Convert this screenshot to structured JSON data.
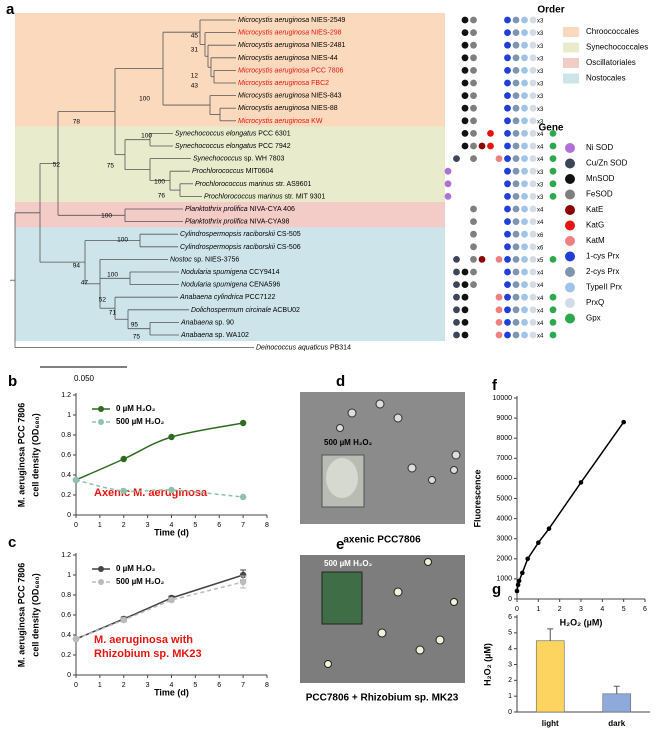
{
  "panel_a": {
    "label": "a",
    "taxa": [
      {
        "species": "Microcystis aeruginosa",
        "strain": "NIES-2549",
        "color": "#000000",
        "genes": [
          2,
          3,
          7,
          8,
          9,
          10
        ],
        "copies": "x3"
      },
      {
        "species": "Microcystis aeruginosa",
        "strain": "NIES-298",
        "color": "#e8140f",
        "genes": [
          2,
          3,
          7,
          8,
          9,
          10
        ],
        "copies": "x3"
      },
      {
        "species": "Microcystis aeruginosa",
        "strain": "NIES-2481",
        "color": "#000000",
        "genes": [
          2,
          3,
          7,
          8,
          9,
          10
        ],
        "copies": "x3"
      },
      {
        "species": "Microcystis aeruginosa",
        "strain": "NIES-44",
        "color": "#000000",
        "genes": [
          2,
          3,
          7,
          8,
          9,
          10
        ],
        "copies": "x3"
      },
      {
        "species": "Microcystis aeruginosa",
        "strain": "PCC 7806",
        "color": "#e8140f",
        "genes": [
          2,
          3,
          7,
          8,
          9,
          10
        ],
        "copies": "x3"
      },
      {
        "species": "Microcystis aeruginosa",
        "strain": "FBC2",
        "color": "#e8140f",
        "genes": [
          2,
          3,
          7,
          8,
          9,
          10
        ],
        "copies": "x3"
      },
      {
        "species": "Microcystis aeruginosa",
        "strain": "NIES-843",
        "color": "#000000",
        "genes": [
          2,
          3,
          7,
          8,
          9,
          10
        ],
        "copies": "x3"
      },
      {
        "species": "Microcystis aeruginosa",
        "strain": "NIES-88",
        "color": "#000000",
        "genes": [
          2,
          3,
          7,
          8,
          9,
          10
        ],
        "copies": "x3"
      },
      {
        "species": "Microcystis aeruginosa",
        "strain": "KW",
        "color": "#e8140f",
        "genes": [
          2,
          3,
          7,
          8,
          9,
          10
        ],
        "copies": "x3"
      },
      {
        "species": "Synechococcus elongatus",
        "strain": "PCC 6301",
        "color": "#000000",
        "genes": [
          2,
          3,
          5,
          7,
          8,
          9,
          10,
          11
        ],
        "copies": "x4"
      },
      {
        "species": "Synechococcus elongatus",
        "strain": "PCC 7942",
        "color": "#000000",
        "genes": [
          2,
          3,
          4,
          5,
          7,
          8,
          9,
          10,
          11
        ],
        "copies": "x4"
      },
      {
        "species": "Synechococcus",
        "strain": "sp. WH 7803",
        "color": "#000000",
        "genes": [
          1,
          3,
          6,
          7,
          8,
          9,
          10,
          11
        ],
        "copies": "x4"
      },
      {
        "species": "Prochlorococcus",
        "strain": "MIT0604",
        "color": "#000000",
        "genes": [
          0,
          7,
          8,
          9,
          10,
          11
        ],
        "copies": "x3"
      },
      {
        "species": "Prochlorococcus marinus",
        "strain": "str. AS9601",
        "color": "#000000",
        "genes": [
          0,
          7,
          8,
          9,
          10,
          11
        ],
        "copies": "x3"
      },
      {
        "species": "Prochlorococcus marinus",
        "strain": "str. MIT 9301",
        "color": "#000000",
        "genes": [
          0,
          7,
          8,
          9,
          10,
          11
        ],
        "copies": "x3"
      },
      {
        "species": "Planktothrix prolifica",
        "strain": "NIVA-CYA 406",
        "color": "#000000",
        "genes": [
          3,
          7,
          8,
          9,
          10
        ],
        "copies": "x4"
      },
      {
        "species": "Planktothrix prolifica",
        "strain": "NIVA-CYA98",
        "color": "#000000",
        "genes": [
          3,
          7,
          8,
          9,
          10
        ],
        "copies": "x4"
      },
      {
        "species": "Cylindrospermopsis raciborskii",
        "strain": "CS-505",
        "color": "#000000",
        "genes": [
          3,
          7,
          8,
          9,
          10
        ],
        "copies": "x6"
      },
      {
        "species": "Cylindrospermopsis raciborskii",
        "strain": "CS-506",
        "color": "#000000",
        "genes": [
          3,
          7,
          8,
          9,
          10
        ],
        "copies": "x6"
      },
      {
        "species": "Nostoc",
        "strain": "sp. NIES-3756",
        "color": "#000000",
        "genes": [
          1,
          3,
          4,
          6,
          7,
          8,
          9,
          10,
          11
        ],
        "copies": "x5"
      },
      {
        "species": "Nodularia spumigena",
        "strain": "CCY9414",
        "color": "#000000",
        "genes": [
          1,
          2,
          3,
          7,
          8,
          9,
          10
        ],
        "copies": "x4"
      },
      {
        "species": "Nodularia spumigena",
        "strain": "CENA596",
        "color": "#000000",
        "genes": [
          1,
          2,
          3,
          7,
          8,
          9,
          10
        ],
        "copies": "x4"
      },
      {
        "species": "Anabaena cylindrica",
        "strain": "PCC7122",
        "color": "#000000",
        "genes": [
          1,
          2,
          6,
          7,
          8,
          9,
          10,
          11
        ],
        "copies": "x4"
      },
      {
        "species": "Dolichospermum circinale",
        "strain": "ACBU02",
        "color": "#000000",
        "genes": [
          1,
          2,
          6,
          7,
          8,
          9,
          10,
          11
        ],
        "copies": "x4"
      },
      {
        "species": "Anabaena",
        "strain": "sp. 90",
        "color": "#000000",
        "genes": [
          1,
          2,
          6,
          7,
          8,
          9,
          10,
          11
        ],
        "copies": "x4"
      },
      {
        "species": "Anabaena",
        "strain": "sp. WA102",
        "color": "#000000",
        "genes": [
          1,
          2,
          6,
          7,
          8,
          9,
          10,
          11
        ],
        "copies": "x4"
      },
      {
        "species": "Deinococcus aquaticus",
        "strain": "PB314",
        "color": "#000000",
        "genes": []
      }
    ],
    "bootstrap": [
      45,
      31,
      12,
      43,
      100,
      78,
      100,
      75,
      100,
      76,
      52,
      100,
      100,
      94,
      100,
      47,
      52,
      71,
      95,
      75
    ],
    "scale_label": "0.050",
    "order_legend": {
      "title": "Order",
      "items": [
        {
          "name": "Chroococcales",
          "color": "#fbd9bd"
        },
        {
          "name": "Synechococcales",
          "color": "#e8eccd"
        },
        {
          "name": "Oscillatoriales",
          "color": "#f3cbc7"
        },
        {
          "name": "Nostocales",
          "color": "#cde4ea"
        }
      ]
    },
    "gene_legend": {
      "title": "Gene",
      "items": [
        {
          "name": "Ni SOD",
          "color": "#b070d8"
        },
        {
          "name": "Cu/Zn SOD",
          "color": "#3c4558"
        },
        {
          "name": "MnSOD",
          "color": "#111111"
        },
        {
          "name": "FeSOD",
          "color": "#7f7f7f"
        },
        {
          "name": "KatE",
          "color": "#8b0000"
        },
        {
          "name": "KatG",
          "color": "#e8140f"
        },
        {
          "name": "KatM",
          "color": "#f08080"
        },
        {
          "name": "1-cys Prx",
          "color": "#1f3fd6"
        },
        {
          "name": "2-cys Prx",
          "color": "#7f94ae"
        },
        {
          "name": "TypeII Prx",
          "color": "#9fc4e8"
        },
        {
          "name": "PrxQ",
          "color": "#d3dbe6"
        },
        {
          "name": "Gpx",
          "color": "#2ca84d"
        }
      ]
    }
  },
  "panel_d": {
    "label": "d",
    "inset_label": "500 µM H₂O₂",
    "caption": "axenic PCC7806"
  },
  "panel_e": {
    "label": "e",
    "inset_label": "500 µM H₂O₂",
    "caption": "PCC7806 + Rhizobium sp. MK23"
  },
  "chart_data": [
    {
      "type": "line",
      "label": "b",
      "smooth": true,
      "x": [
        0,
        2,
        4,
        7
      ],
      "series": [
        {
          "name": "0 µM H₂O₂",
          "color": "#2e6b1f",
          "values": [
            0.35,
            0.56,
            0.78,
            0.92
          ]
        },
        {
          "name": "500 µM H₂O₂",
          "color": "#8fc2ae",
          "dashed": true,
          "values": [
            0.35,
            0.24,
            0.25,
            0.18
          ]
        }
      ],
      "xlim": [
        0,
        8
      ],
      "ylim": [
        0,
        1.2
      ],
      "xticks": [
        0,
        1,
        2,
        3,
        4,
        5,
        6,
        7,
        8
      ],
      "yticks": [
        0,
        0.2,
        0.4,
        0.6,
        0.8,
        1,
        1.2
      ],
      "xlabel": "Time (d)",
      "ylabel": [
        "M. aeruginosa PCC 7806",
        "cell density (OD₆₈₀)"
      ],
      "annotation": [
        "Axenic M. aeruginosa"
      ]
    },
    {
      "type": "line",
      "label": "c",
      "x": [
        0,
        2,
        4,
        7
      ],
      "series": [
        {
          "name": "0 µM H₂O₂",
          "color": "#444444",
          "values": [
            0.36,
            0.56,
            0.77,
            1.0
          ],
          "errors": [
            0.01,
            0.02,
            0.02,
            0.05
          ]
        },
        {
          "name": "500 µM H₂O₂",
          "color": "#bbbbbb",
          "dashed": true,
          "values": [
            0.36,
            0.55,
            0.75,
            0.93
          ],
          "errors": [
            0.01,
            0.02,
            0.02,
            0.06
          ]
        }
      ],
      "xlim": [
        0,
        8
      ],
      "ylim": [
        0,
        1.2
      ],
      "xticks": [
        0,
        1,
        2,
        3,
        4,
        5,
        6,
        7,
        8
      ],
      "yticks": [
        0,
        0.2,
        0.4,
        0.6,
        0.8,
        1,
        1.2
      ],
      "xlabel": "Time (d)",
      "ylabel": [
        "M. aeruginosa PCC 7806",
        "cell density (OD₆₈₀)"
      ],
      "annotation": [
        "M. aeruginosa with",
        "Rhizobium sp. MK23"
      ]
    },
    {
      "type": "scatter",
      "label": "f",
      "line": true,
      "color": "#000000",
      "x": [
        0,
        0.05,
        0.1,
        0.25,
        0.5,
        1,
        1.5,
        3,
        5
      ],
      "values": [
        400,
        700,
        900,
        1300,
        2000,
        2800,
        3500,
        5800,
        8800
      ],
      "xlim": [
        0,
        6
      ],
      "ylim": [
        0,
        10000
      ],
      "xticks": [
        0,
        1,
        2,
        3,
        4,
        5,
        6
      ],
      "yticks": [
        0,
        1000,
        2000,
        3000,
        4000,
        5000,
        6000,
        7000,
        8000,
        9000,
        10000
      ],
      "xlabel": "H₂O₂ (µM)",
      "ylabel": "Fluorescence"
    },
    {
      "type": "bar",
      "label": "g",
      "categories": [
        "light",
        "dark"
      ],
      "values": [
        4.5,
        1.15
      ],
      "errors": [
        0.75,
        0.48
      ],
      "colors": [
        "#fcd45f",
        "#8eaadb"
      ],
      "ylim": [
        0,
        6
      ],
      "yticks": [
        0,
        1,
        2,
        3,
        4,
        5,
        6
      ],
      "ylabel": "H₂O₂ (µM)"
    }
  ]
}
